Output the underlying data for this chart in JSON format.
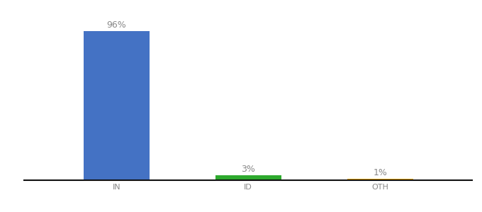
{
  "categories": [
    "IN",
    "ID",
    "OTH"
  ],
  "values": [
    96,
    3,
    1
  ],
  "bar_colors": [
    "#4472c4",
    "#2eaa2e",
    "#f0a500"
  ],
  "labels": [
    "96%",
    "3%",
    "1%"
  ],
  "ylim": [
    0,
    105
  ],
  "background_color": "#ffffff",
  "label_fontsize": 9,
  "tick_fontsize": 8,
  "bar_width": 0.5,
  "bar_positions": [
    0,
    1,
    2
  ]
}
